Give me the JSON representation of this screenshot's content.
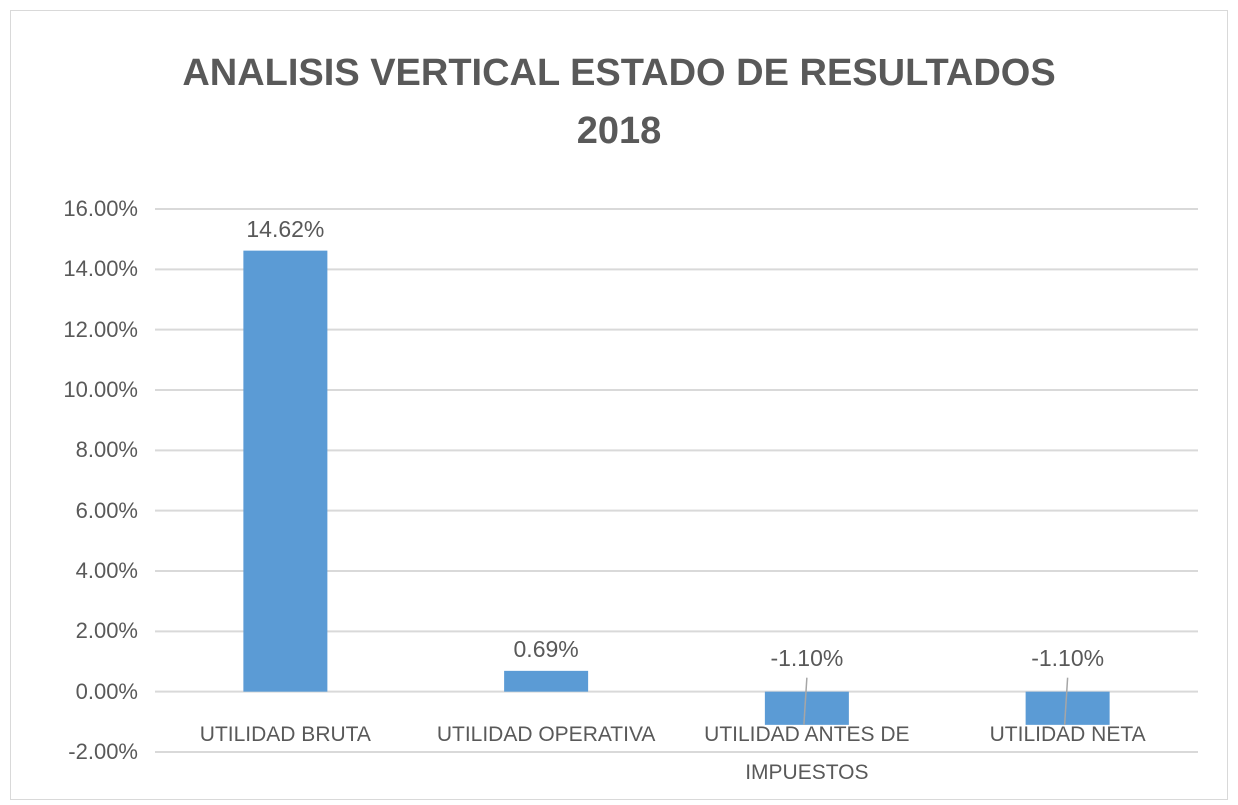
{
  "chart_data": {
    "type": "bar",
    "title": "ANALISIS VERTICAL ESTADO DE RESULTADOS 2018",
    "categories": [
      "UTILIDAD BRUTA",
      "UTILIDAD OPERATIVA",
      "UTILIDAD ANTES DE IMPUESTOS",
      "UTILIDAD NETA"
    ],
    "values": [
      14.62,
      0.69,
      -1.1,
      -1.1
    ],
    "value_labels": [
      "14.62%",
      "0.69%",
      "-1.10%",
      "-1.10%"
    ],
    "color": "#5b9bd5",
    "ylim": [
      -2,
      16
    ],
    "yticks": [
      {
        "value": -2,
        "label": "-2.00%"
      },
      {
        "value": 0,
        "label": "0.00%"
      },
      {
        "value": 2,
        "label": "2.00%"
      },
      {
        "value": 4,
        "label": "4.00%"
      },
      {
        "value": 6,
        "label": "6.00%"
      },
      {
        "value": 8,
        "label": "8.00%"
      },
      {
        "value": 10,
        "label": "10.00%"
      },
      {
        "value": 12,
        "label": "12.00%"
      },
      {
        "value": 14,
        "label": "14.00%"
      },
      {
        "value": 16,
        "label": "16.00%"
      }
    ],
    "grid": true
  }
}
